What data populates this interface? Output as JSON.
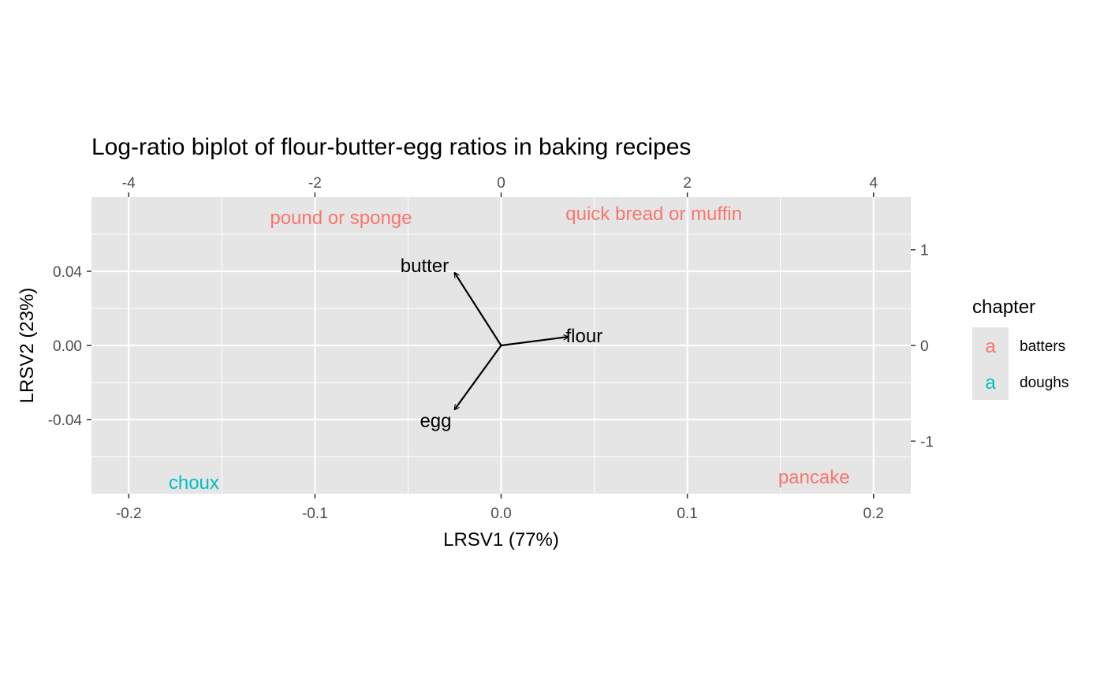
{
  "chart_data": {
    "type": "scatter",
    "title": "Log-ratio biplot of flour-butter-egg ratios in baking recipes",
    "xlabel": "LRSV1 (77%)",
    "ylabel": "LRSV2 (23%)",
    "xlim": [
      -0.22,
      0.22
    ],
    "ylim": [
      -0.08,
      0.08
    ],
    "x_ticks": [
      -0.2,
      -0.1,
      0.0,
      0.1,
      0.2
    ],
    "x_tick_labels": [
      "-0.2",
      "-0.1",
      "0.0",
      "0.1",
      "0.2"
    ],
    "y_ticks": [
      -0.04,
      0.0,
      0.04
    ],
    "y_tick_labels": [
      "-0.04",
      "0.00",
      "0.04"
    ],
    "secondary_x_axis": {
      "position": "top",
      "lim": [
        -4.4,
        4.4
      ],
      "ticks": [
        -4,
        -2,
        0,
        2,
        4
      ],
      "tick_labels": [
        "-4",
        "-2",
        "0",
        "2",
        "4"
      ]
    },
    "secondary_y_axis": {
      "position": "right",
      "lim": [
        -1.55,
        1.55
      ],
      "ticks": [
        -1,
        0,
        1
      ],
      "tick_labels": [
        "-1",
        "0",
        "1"
      ]
    },
    "grid": true,
    "points": [
      {
        "label": "pound or sponge",
        "x": -0.086,
        "y": 0.069,
        "chapter": "batters"
      },
      {
        "label": "quick bread or muffin",
        "x": 0.082,
        "y": 0.071,
        "chapter": "batters"
      },
      {
        "label": "choux",
        "x": -0.165,
        "y": -0.074,
        "chapter": "doughs"
      },
      {
        "label": "pancake",
        "x": 0.168,
        "y": -0.071,
        "chapter": "batters"
      }
    ],
    "vectors": [
      {
        "label": "flour",
        "x": 0.72,
        "y": 0.09
      },
      {
        "label": "butter",
        "x": -0.5,
        "y": 0.76
      },
      {
        "label": "egg",
        "x": -0.5,
        "y": -0.67
      }
    ],
    "legend": {
      "title": "chapter",
      "position": "right",
      "key_glyph": "a",
      "entries": [
        {
          "name": "batters",
          "color": "#F8766D"
        },
        {
          "name": "doughs",
          "color": "#00BFC4"
        }
      ]
    },
    "colors": {
      "panel_bg": "#E5E5E5",
      "grid": "#FFFFFF",
      "batters": "#F8766D",
      "doughs": "#00BFC4",
      "vector": "#000000",
      "axis_text": "#4D4D4D"
    }
  }
}
